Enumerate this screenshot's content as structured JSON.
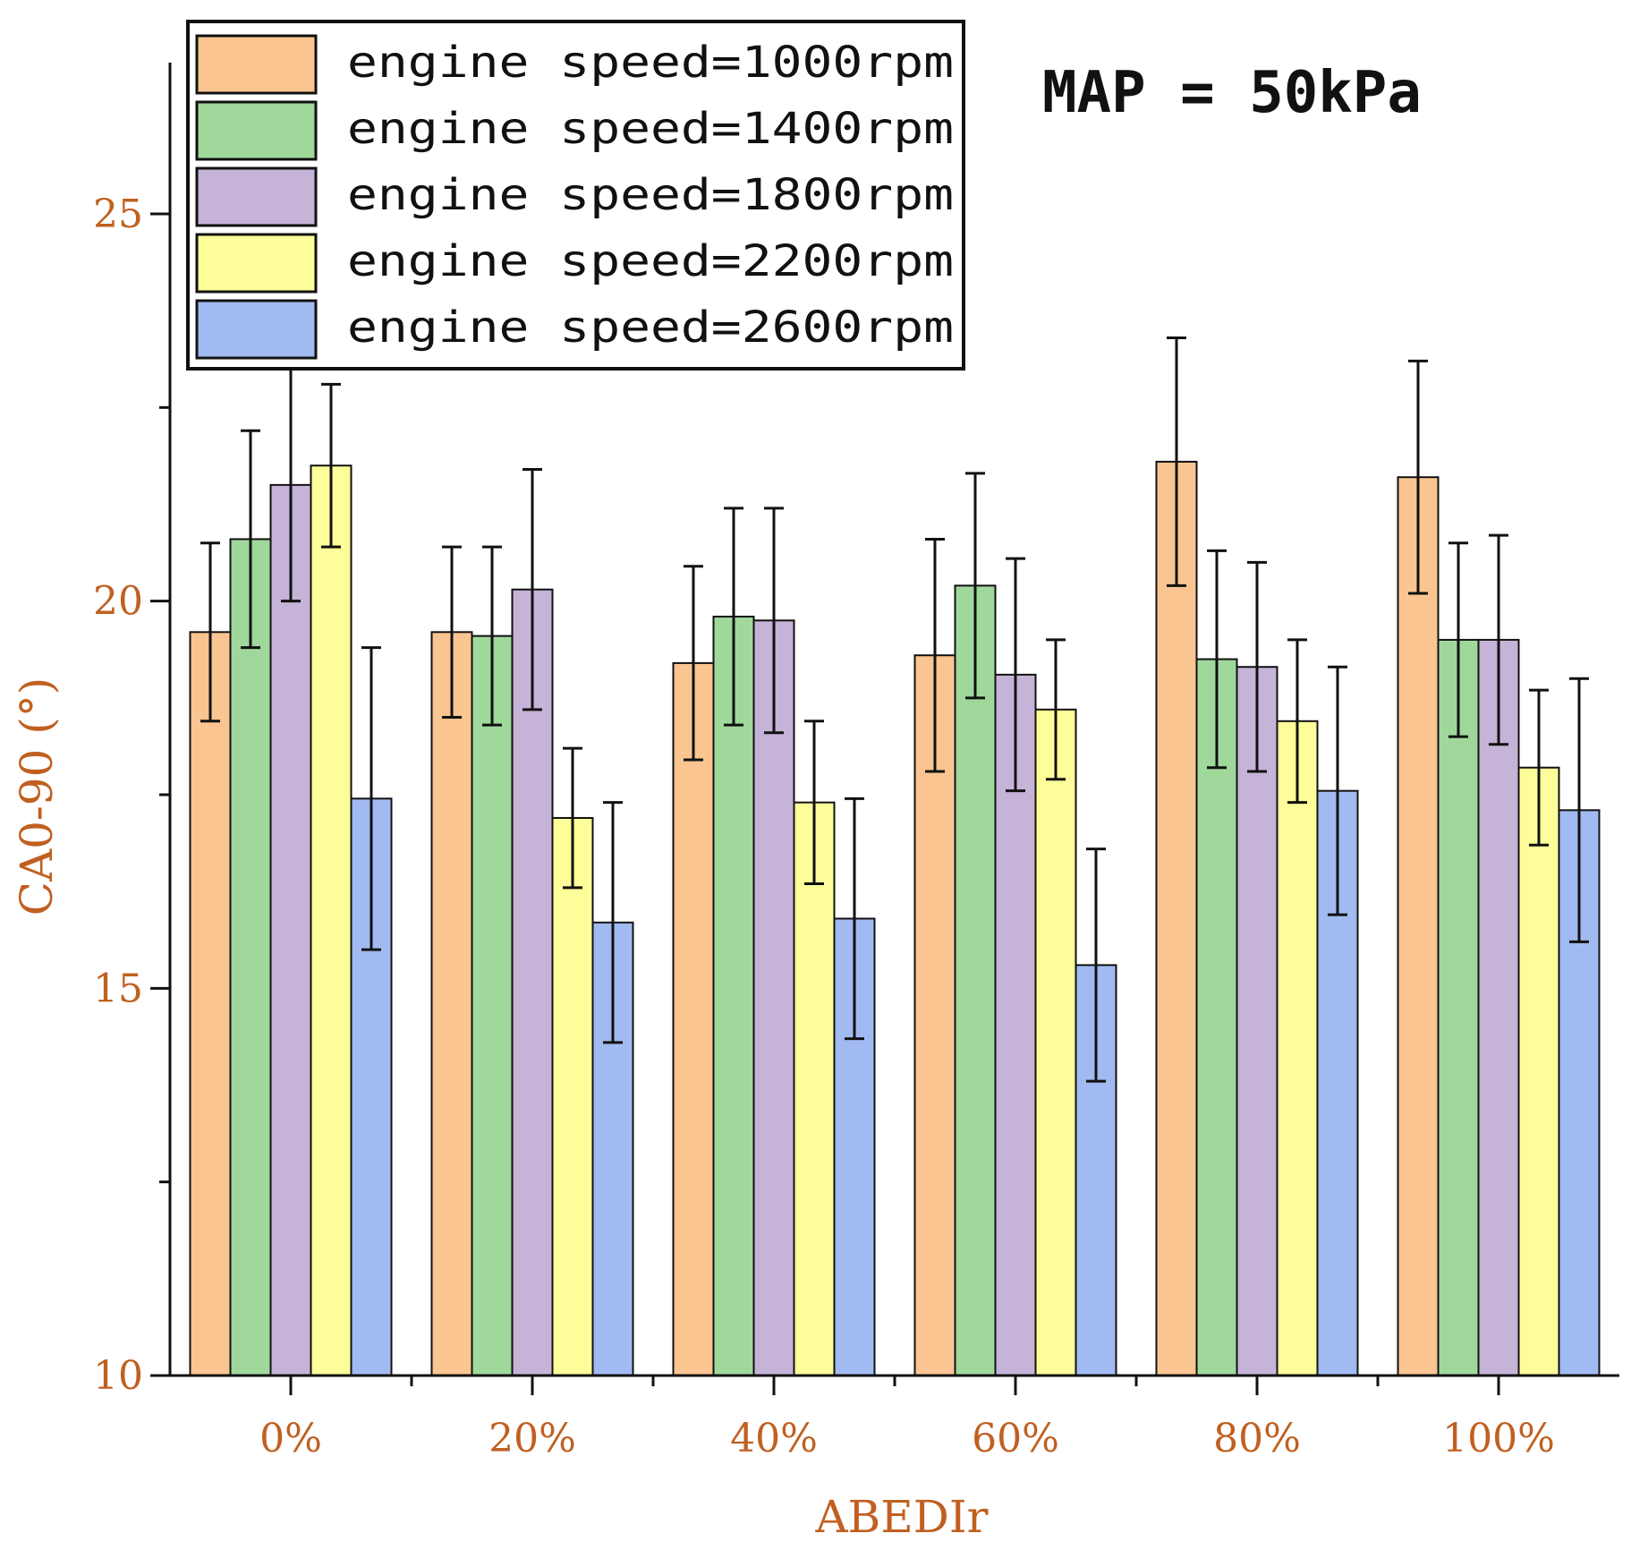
{
  "chart_data": {
    "type": "bar",
    "title": "",
    "annotation": "MAP = 50kPa",
    "xlabel": "ABEDIr",
    "ylabel": "CA0-90 (°)",
    "ylim": [
      10,
      27
    ],
    "yticks": [
      10,
      15,
      20,
      25
    ],
    "ytick_labels": [
      "10",
      "15",
      "20",
      "25"
    ],
    "categories": [
      "0%",
      "20%",
      "40%",
      "60%",
      "80%",
      "100%"
    ],
    "legend_position": "top-left",
    "series": [
      {
        "name": "engine speed=1000rpm",
        "color": "#fac591",
        "values": [
          19.6,
          19.6,
          19.2,
          19.3,
          21.8,
          21.6
        ],
        "errors": [
          1.15,
          1.1,
          1.25,
          1.5,
          1.6,
          1.5
        ]
      },
      {
        "name": "engine speed=1400rpm",
        "color": "#a0d89c",
        "values": [
          20.8,
          19.55,
          19.8,
          20.2,
          19.25,
          19.5
        ],
        "errors": [
          1.4,
          1.15,
          1.4,
          1.45,
          1.4,
          1.25
        ]
      },
      {
        "name": "engine speed=1800rpm",
        "color": "#c5b3d8",
        "values": [
          21.5,
          20.15,
          19.75,
          19.05,
          19.15,
          19.5
        ],
        "errors": [
          1.5,
          1.55,
          1.45,
          1.5,
          1.35,
          1.35
        ]
      },
      {
        "name": "engine speed=2200rpm",
        "color": "#fdfd99",
        "values": [
          21.75,
          17.2,
          17.4,
          18.6,
          18.45,
          17.85
        ],
        "errors": [
          1.05,
          0.9,
          1.05,
          0.9,
          1.05,
          1.0
        ]
      },
      {
        "name": "engine speed=2600rpm",
        "color": "#a1baf1",
        "values": [
          17.45,
          15.85,
          15.9,
          15.3,
          17.55,
          17.3
        ],
        "errors": [
          1.95,
          1.55,
          1.55,
          1.5,
          1.6,
          1.7
        ]
      }
    ]
  }
}
